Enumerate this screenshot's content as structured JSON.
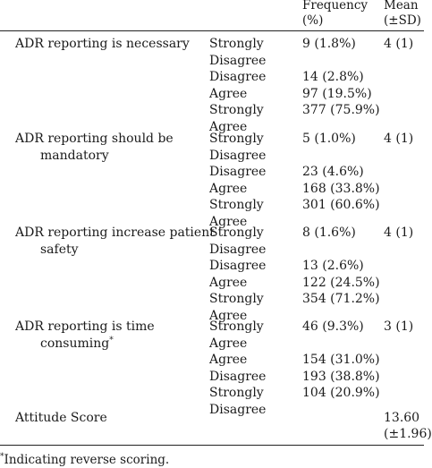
{
  "header": {
    "frequency_line1": "Frequency",
    "frequency_line2": "(%)",
    "mean_line1": "Mean",
    "mean_line2": "(±SD)"
  },
  "items": [
    {
      "label_lines": [
        "ADR reporting is necessary"
      ],
      "mean": "4 (1)",
      "responses": [
        {
          "lines": [
            "Strongly",
            "Disagree"
          ],
          "freq": "9 (1.8%)"
        },
        {
          "lines": [
            "Disagree"
          ],
          "freq": "14 (2.8%)"
        },
        {
          "lines": [
            "Agree"
          ],
          "freq": "97 (19.5%)"
        },
        {
          "lines": [
            "Strongly",
            "Agree"
          ],
          "freq": "377 (75.9%)"
        }
      ]
    },
    {
      "label_lines": [
        "ADR reporting should be",
        "mandatory"
      ],
      "mean": "4 (1)",
      "responses": [
        {
          "lines": [
            "Strongly",
            "Disagree"
          ],
          "freq": "5 (1.0%)"
        },
        {
          "lines": [
            "Disagree"
          ],
          "freq": "23 (4.6%)"
        },
        {
          "lines": [
            "Agree"
          ],
          "freq": "168 (33.8%)"
        },
        {
          "lines": [
            "Strongly",
            "Agree"
          ],
          "freq": "301 (60.6%)"
        }
      ]
    },
    {
      "label_lines": [
        "ADR reporting increase patient",
        "safety"
      ],
      "mean": "4 (1)",
      "responses": [
        {
          "lines": [
            "Strongly",
            "Disagree"
          ],
          "freq": "8 (1.6%)"
        },
        {
          "lines": [
            "Disagree"
          ],
          "freq": "13 (2.6%)"
        },
        {
          "lines": [
            "Agree"
          ],
          "freq": "122 (24.5%)"
        },
        {
          "lines": [
            "Strongly",
            "Agree"
          ],
          "freq": "354 (71.2%)"
        }
      ]
    },
    {
      "label_lines": [
        "ADR reporting is time",
        "consuming*"
      ],
      "mean": "3 (1)",
      "responses": [
        {
          "lines": [
            "Strongly",
            "Agree"
          ],
          "freq": "46 (9.3%)"
        },
        {
          "lines": [
            "Agree"
          ],
          "freq": "154 (31.0%)"
        },
        {
          "lines": [
            "Disagree"
          ],
          "freq": "193 (38.8%)"
        },
        {
          "lines": [
            "Strongly",
            "Disagree"
          ],
          "freq": "104 (20.9%)"
        }
      ]
    }
  ],
  "attitude": {
    "label": "Attitude Score",
    "mean_line1": "13.60",
    "mean_line2": "(±1.96)"
  },
  "footnote": "*Indicating reverse scoring."
}
